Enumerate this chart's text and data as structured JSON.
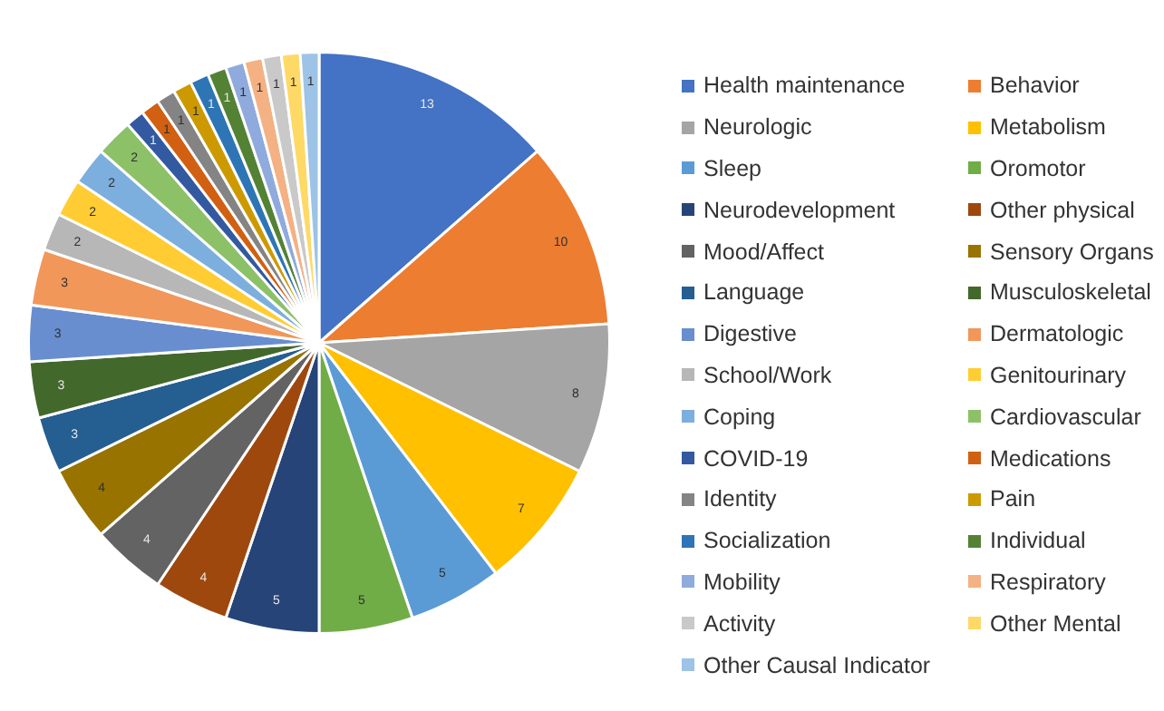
{
  "chart_data": {
    "type": "pie",
    "categories": [
      "Health maintenance",
      "Behavior",
      "Neurologic",
      "Metabolism",
      "Sleep",
      "Oromotor",
      "Neurodevelopment",
      "Other physical",
      "Mood/Affect",
      "Sensory Organs",
      "Language",
      "Musculoskeletal",
      "Digestive",
      "Dermatologic",
      "School/Work",
      "Genitourinary",
      "Coping",
      "Cardiovascular",
      "COVID-19",
      "Medications",
      "Identity",
      "Pain",
      "Socialization",
      "Individual",
      "Mobility",
      "Respiratory",
      "Activity",
      "Other Mental",
      "Other Causal Indicator"
    ],
    "values": [
      13,
      10,
      8,
      7,
      5,
      5,
      5,
      4,
      4,
      4,
      3,
      3,
      3,
      3,
      2,
      2,
      2,
      2,
      1,
      1,
      1,
      1,
      1,
      1,
      1,
      1,
      1,
      1,
      1
    ],
    "colors": [
      "#4472c4",
      "#ed7d31",
      "#a5a5a5",
      "#ffc000",
      "#5b9bd5",
      "#70ad47",
      "#264478",
      "#9e480e",
      "#636363",
      "#997300",
      "#255e91",
      "#43682b",
      "#698ed0",
      "#f1975a",
      "#b7b7b7",
      "#ffcd33",
      "#7cafdd",
      "#8cc168",
      "#335aa1",
      "#d26012",
      "#848484",
      "#cc9a00",
      "#2e75b6",
      "#548235",
      "#8faadc",
      "#f4b183",
      "#c9c9c9",
      "#ffd966",
      "#9dc3e6"
    ],
    "data_labels": true,
    "legend": "right"
  }
}
